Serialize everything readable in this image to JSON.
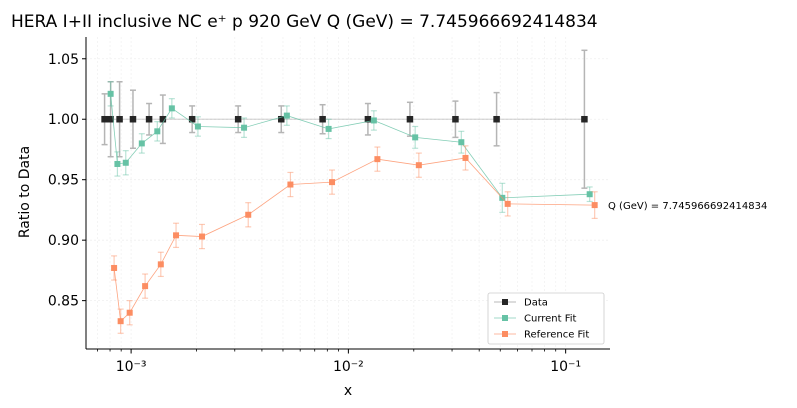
{
  "chart_data": {
    "type": "scatter",
    "title": "HERA I+II inclusive NC e⁺ p 920 GeV Q (GeV) = 7.745966692414834",
    "xlabel": "x",
    "ylabel": "Ratio to Data",
    "xscale": "log",
    "xlim": [
      0.00062,
      0.16
    ],
    "ylim": [
      0.81,
      1.068
    ],
    "yticks": [
      0.85,
      0.9,
      0.95,
      1.0,
      1.05
    ],
    "ytick_labels": [
      "0.85",
      "0.90",
      "0.95",
      "1.00",
      "1.05"
    ],
    "xticks": [
      0.001,
      0.01,
      0.1
    ],
    "xtick_labels": [
      "10⁻³",
      "10⁻²",
      "10⁻¹"
    ],
    "grid": true,
    "legend_position": "lower-right",
    "annotation": "Q (GeV) = 7.745966692414834",
    "series": [
      {
        "name": "Data",
        "color": "#262626",
        "points": [
          {
            "x": 0.000755,
            "y": 1.0,
            "err": 0.021
          },
          {
            "x": 0.000805,
            "y": 1.0,
            "err": 0.031
          },
          {
            "x": 0.000885,
            "y": 1.0,
            "err": 0.031
          },
          {
            "x": 0.00102,
            "y": 1.0,
            "err": 0.024
          },
          {
            "x": 0.00121,
            "y": 1.0,
            "err": 0.013
          },
          {
            "x": 0.0014,
            "y": 1.0,
            "err": 0.02
          },
          {
            "x": 0.00191,
            "y": 1.0,
            "err": 0.011
          },
          {
            "x": 0.00311,
            "y": 1.0,
            "err": 0.011
          },
          {
            "x": 0.00491,
            "y": 1.0,
            "err": 0.011
          },
          {
            "x": 0.00761,
            "y": 1.0,
            "err": 0.012
          },
          {
            "x": 0.0123,
            "y": 1.0,
            "err": 0.013
          },
          {
            "x": 0.0192,
            "y": 1.0,
            "err": 0.014
          },
          {
            "x": 0.0311,
            "y": 1.0,
            "err": 0.015
          },
          {
            "x": 0.0481,
            "y": 1.0,
            "err": 0.022
          },
          {
            "x": 0.122,
            "y": 1.0,
            "err": 0.057
          }
        ]
      },
      {
        "name": "Current Fit",
        "color": "#66c2a5",
        "points": [
          {
            "x": 0.000805,
            "y": 1.021,
            "err": 0.01
          },
          {
            "x": 0.000865,
            "y": 0.963,
            "err": 0.01
          },
          {
            "x": 0.000945,
            "y": 0.964,
            "err": 0.01
          },
          {
            "x": 0.00112,
            "y": 0.98,
            "err": 0.008
          },
          {
            "x": 0.00132,
            "y": 0.99,
            "err": 0.008
          },
          {
            "x": 0.00154,
            "y": 1.009,
            "err": 0.008
          },
          {
            "x": 0.00203,
            "y": 0.994,
            "err": 0.008
          },
          {
            "x": 0.00331,
            "y": 0.993,
            "err": 0.008
          },
          {
            "x": 0.00521,
            "y": 1.003,
            "err": 0.008
          },
          {
            "x": 0.00811,
            "y": 0.992,
            "err": 0.008
          },
          {
            "x": 0.0131,
            "y": 0.999,
            "err": 0.008
          },
          {
            "x": 0.0203,
            "y": 0.985,
            "err": 0.009
          },
          {
            "x": 0.0331,
            "y": 0.981,
            "err": 0.009
          },
          {
            "x": 0.0511,
            "y": 0.935,
            "err": 0.012
          },
          {
            "x": 0.129,
            "y": 0.938,
            "err": 0.006
          }
        ]
      },
      {
        "name": "Reference Fit",
        "color": "#fc8d62",
        "points": [
          {
            "x": 0.000835,
            "y": 0.877,
            "err": 0.01
          },
          {
            "x": 0.000895,
            "y": 0.833,
            "err": 0.01
          },
          {
            "x": 0.000985,
            "y": 0.84,
            "err": 0.01
          },
          {
            "x": 0.00116,
            "y": 0.862,
            "err": 0.01
          },
          {
            "x": 0.00137,
            "y": 0.88,
            "err": 0.01
          },
          {
            "x": 0.00161,
            "y": 0.904,
            "err": 0.01
          },
          {
            "x": 0.00212,
            "y": 0.903,
            "err": 0.01
          },
          {
            "x": 0.00346,
            "y": 0.921,
            "err": 0.01
          },
          {
            "x": 0.00541,
            "y": 0.946,
            "err": 0.01
          },
          {
            "x": 0.00841,
            "y": 0.948,
            "err": 0.01
          },
          {
            "x": 0.0136,
            "y": 0.967,
            "err": 0.01
          },
          {
            "x": 0.0211,
            "y": 0.962,
            "err": 0.01
          },
          {
            "x": 0.0346,
            "y": 0.968,
            "err": 0.01
          },
          {
            "x": 0.0541,
            "y": 0.93,
            "err": 0.01
          },
          {
            "x": 0.136,
            "y": 0.929,
            "err": 0.011
          }
        ]
      }
    ]
  }
}
